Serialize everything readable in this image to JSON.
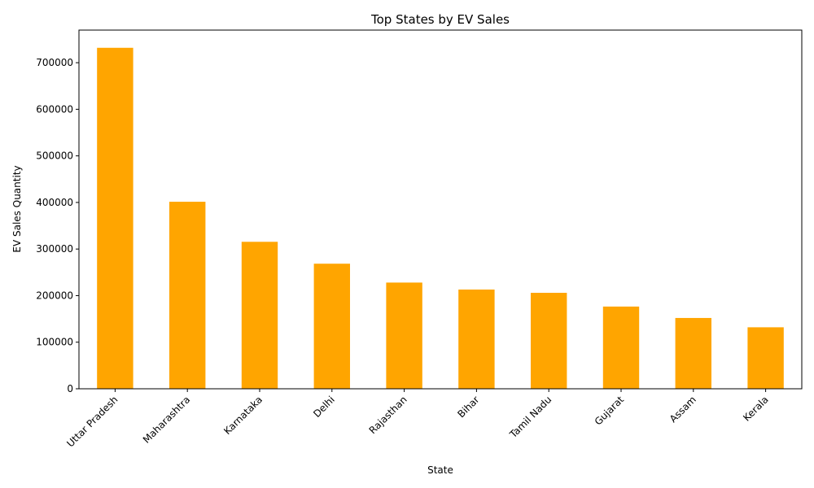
{
  "chart_data": {
    "type": "bar",
    "title": "Top States by EV Sales",
    "xlabel": "State",
    "ylabel": "EV Sales Quantity",
    "categories": [
      "Uttar Pradesh",
      "Maharashtra",
      "Karnataka",
      "Delhi",
      "Rajasthan",
      "Bihar",
      "Tamil Nadu",
      "Gujarat",
      "Assam",
      "Kerala"
    ],
    "values": [
      732000,
      401500,
      315500,
      268500,
      228000,
      213000,
      206000,
      176500,
      152000,
      132000
    ],
    "yticks": [
      0,
      100000,
      200000,
      300000,
      400000,
      500000,
      600000,
      700000
    ],
    "ylim": [
      0,
      770000
    ],
    "bar_color": "#ffa500",
    "grid": false,
    "legend": false
  }
}
